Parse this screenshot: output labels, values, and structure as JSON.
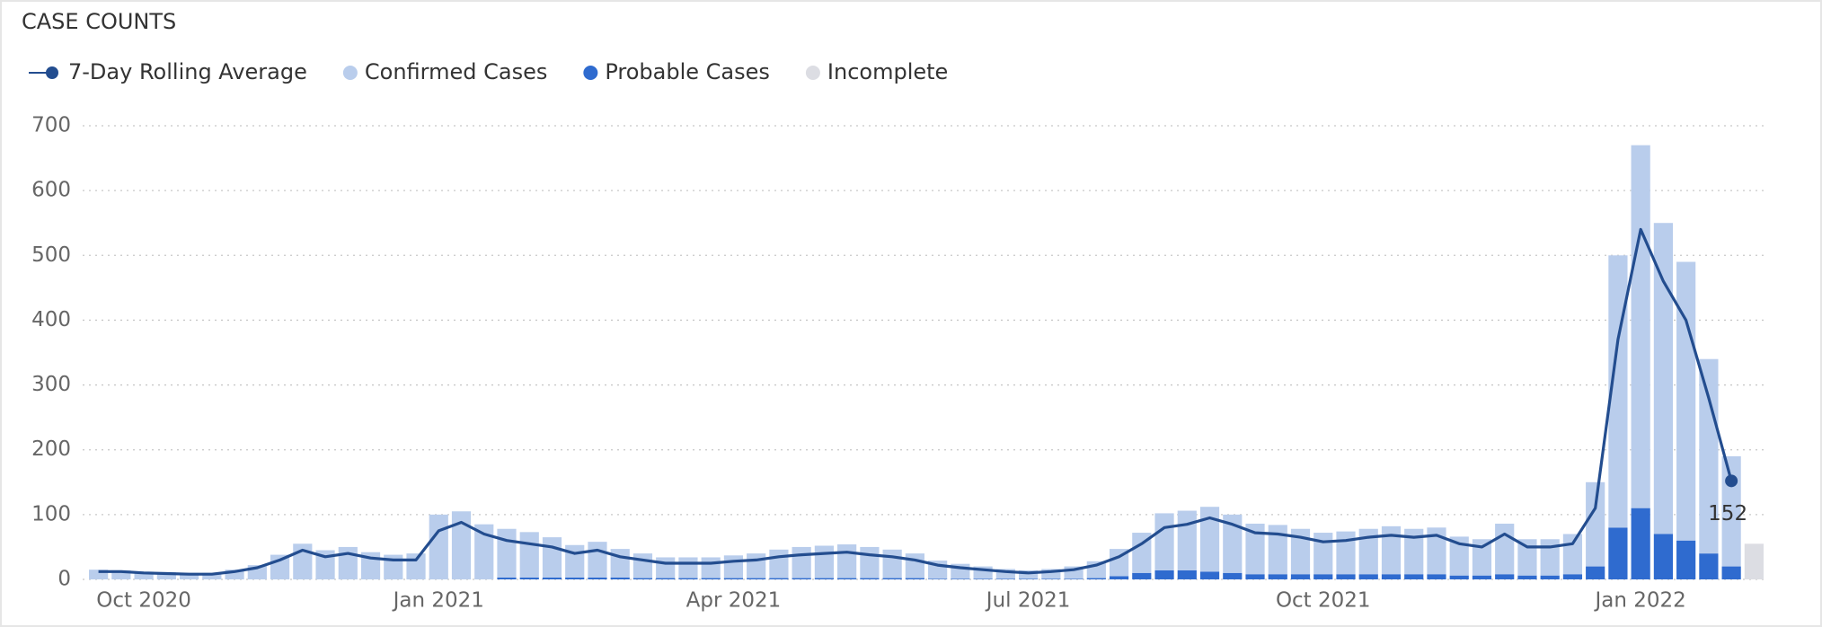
{
  "chart_data": {
    "type": "combo",
    "title": "CASE COUNTS",
    "categories": [
      null,
      null,
      "Oct 2020",
      null,
      null,
      null,
      null,
      null,
      null,
      null,
      null,
      null,
      null,
      null,
      null,
      "Jan 2021",
      null,
      null,
      null,
      null,
      null,
      null,
      null,
      null,
      null,
      null,
      null,
      null,
      "Apr 2021",
      null,
      null,
      null,
      null,
      null,
      null,
      null,
      null,
      null,
      null,
      null,
      null,
      "Jul 2021",
      null,
      null,
      null,
      null,
      null,
      null,
      null,
      null,
      null,
      null,
      null,
      null,
      "Oct 2021",
      null,
      null,
      null,
      null,
      null,
      null,
      null,
      null,
      null,
      null,
      null,
      null,
      null,
      "Jan 2022",
      null,
      null,
      null,
      null,
      null
    ],
    "series": [
      {
        "name": "7-Day Rolling Average",
        "type": "line",
        "color": "#234d8f",
        "values": [
          12,
          12,
          10,
          9,
          8,
          8,
          12,
          18,
          30,
          45,
          35,
          40,
          33,
          30,
          30,
          75,
          88,
          70,
          60,
          55,
          50,
          40,
          45,
          35,
          30,
          25,
          25,
          25,
          28,
          30,
          35,
          38,
          40,
          42,
          38,
          35,
          30,
          22,
          18,
          15,
          12,
          10,
          12,
          15,
          22,
          35,
          55,
          80,
          85,
          95,
          85,
          72,
          70,
          65,
          58,
          60,
          65,
          68,
          65,
          68,
          55,
          50,
          70,
          50,
          50,
          55,
          110,
          370,
          540,
          460,
          400,
          280,
          152,
          null
        ]
      },
      {
        "name": "Confirmed Cases",
        "type": "bar",
        "color": "#b9cdec",
        "values": [
          15,
          14,
          12,
          11,
          10,
          10,
          15,
          22,
          38,
          55,
          45,
          50,
          42,
          38,
          40,
          100,
          105,
          85,
          75,
          70,
          62,
          50,
          55,
          44,
          38,
          32,
          32,
          32,
          35,
          38,
          44,
          48,
          50,
          52,
          48,
          44,
          38,
          28,
          23,
          19,
          15,
          13,
          15,
          19,
          26,
          42,
          62,
          88,
          92,
          100,
          90,
          78,
          76,
          70,
          64,
          66,
          70,
          74,
          70,
          72,
          60,
          56,
          78,
          56,
          56,
          62,
          130,
          420,
          560,
          480,
          430,
          300,
          170,
          null
        ]
      },
      {
        "name": "Probable Cases",
        "type": "bar",
        "color": "#2f6bcf",
        "values": [
          0,
          0,
          0,
          0,
          0,
          0,
          0,
          0,
          0,
          0,
          0,
          0,
          0,
          0,
          0,
          0,
          0,
          0,
          3,
          3,
          3,
          3,
          3,
          3,
          2,
          2,
          2,
          2,
          2,
          2,
          2,
          2,
          2,
          2,
          2,
          2,
          2,
          1,
          1,
          1,
          1,
          1,
          1,
          1,
          2,
          5,
          10,
          14,
          14,
          12,
          10,
          8,
          8,
          8,
          8,
          8,
          8,
          8,
          8,
          8,
          6,
          6,
          8,
          6,
          6,
          8,
          20,
          80,
          110,
          70,
          60,
          40,
          20,
          null
        ]
      },
      {
        "name": "Incomplete",
        "type": "bar",
        "color": "#dcdde3",
        "values": [
          null,
          null,
          null,
          null,
          null,
          null,
          null,
          null,
          null,
          null,
          null,
          null,
          null,
          null,
          null,
          null,
          null,
          null,
          null,
          null,
          null,
          null,
          null,
          null,
          null,
          null,
          null,
          null,
          null,
          null,
          null,
          null,
          null,
          null,
          null,
          null,
          null,
          null,
          null,
          null,
          null,
          null,
          null,
          null,
          null,
          null,
          null,
          null,
          null,
          null,
          null,
          null,
          null,
          null,
          null,
          null,
          null,
          null,
          null,
          null,
          null,
          null,
          null,
          null,
          null,
          null,
          null,
          null,
          null,
          null,
          null,
          null,
          null,
          55
        ]
      }
    ],
    "ylim": [
      0,
      700
    ],
    "yticks": [
      0,
      100,
      200,
      300,
      400,
      500,
      600,
      700
    ],
    "grid": true,
    "legend": "top-left"
  }
}
